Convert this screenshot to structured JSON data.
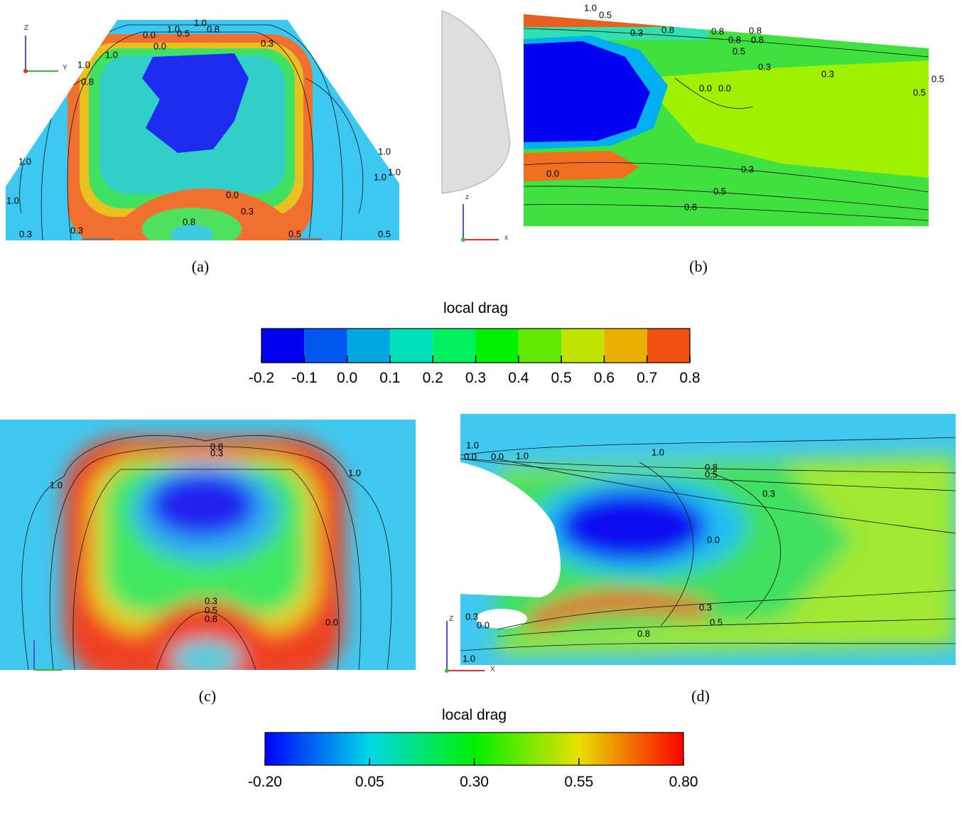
{
  "panels": [
    {
      "caption": "(a)",
      "axis_labels": [
        "Z",
        "Y"
      ],
      "contour_labels": [
        "1.0",
        "0.0",
        "0.5",
        "0.8",
        "1.0",
        "0.3",
        "1.0",
        "1.0",
        "0.0",
        "0.8",
        "1.0",
        "1.0",
        "1.0",
        "1.0",
        "1.0",
        "0.0",
        "0.3",
        "0.8",
        "0.3",
        "0.3",
        "0.5",
        "0.5"
      ]
    },
    {
      "caption": "(b)",
      "axis_labels": [
        "z",
        "x"
      ],
      "contour_labels": [
        "1.0",
        "0.5",
        "0.3",
        "0.8",
        "0.8",
        "0.8",
        "0.8",
        "0.8",
        "0.5",
        "0.3",
        "0.3",
        "0.5",
        "0.5",
        "0.0",
        "0.0",
        "0.3",
        "0.0",
        "0.5",
        "0.8"
      ]
    },
    {
      "caption": "(c)",
      "axis_labels": [],
      "contour_labels": [
        "0.8",
        "0.3",
        "1.0",
        "1.0",
        "0.3",
        "0.5",
        "0.8",
        "0.0"
      ]
    },
    {
      "caption": "(d)",
      "axis_labels": [
        "Z",
        "X"
      ],
      "contour_labels": [
        "1.0",
        "1.0",
        "0.0",
        "0.0",
        "1.0",
        "0.8",
        "0.5",
        "0.3",
        "0.0",
        "0.3",
        "0.0",
        "0.3",
        "0.5",
        "0.8",
        "1.0"
      ]
    }
  ],
  "colorbars": [
    {
      "title": "local drag",
      "ticks": [
        -0.2,
        -0.1,
        {
          "value": 0,
          "label": "0.0"
        },
        0.1,
        0.2,
        0.3,
        0.4,
        0.5,
        0.6,
        0.7,
        0.8
      ],
      "colors": [
        "#0000f0",
        "#0058f0",
        "#00a8e0",
        "#00e0b8",
        "#00f060",
        "#00f000",
        "#60e800",
        "#c0e400",
        "#e8b000",
        "#f05010"
      ]
    },
    {
      "title": "local drag",
      "ticks": [
        {
          "value": -0.2,
          "label": "-0.20"
        },
        0.05,
        {
          "value": 0.3,
          "label": "0.30"
        },
        0.55,
        {
          "value": 0.8,
          "label": "0.80"
        }
      ],
      "colors": [
        "#0000ff",
        "#00d8e8",
        "#00f000",
        "#e8e000",
        "#ff0000"
      ]
    }
  ]
}
